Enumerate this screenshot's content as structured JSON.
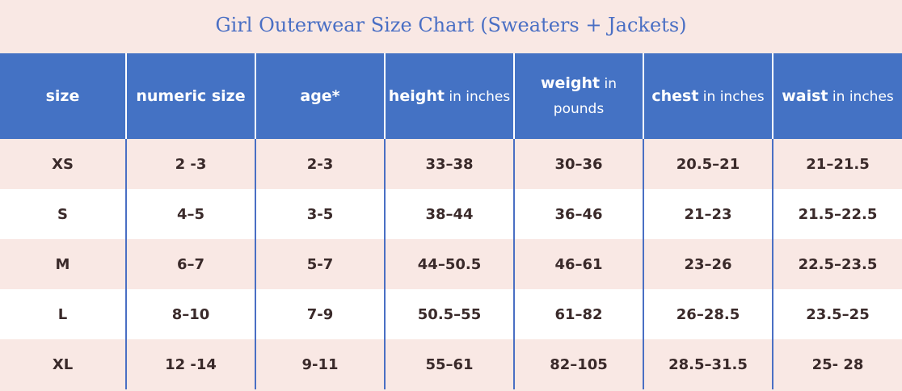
{
  "title": "Girl Outerwear Size Chart (Sweaters + Jackets)",
  "headers": [
    {
      "bold": "size",
      "regular": ""
    },
    {
      "bold": "numeric size",
      "regular": ""
    },
    {
      "bold": "age*",
      "regular": ""
    },
    {
      "bold": "height",
      "regular": " in inches"
    },
    {
      "bold": "weight",
      "regular": " in pounds"
    },
    {
      "bold": "chest",
      "regular": " in inches"
    },
    {
      "bold": "waist",
      "regular": " in inches"
    }
  ],
  "rows": [
    [
      "XS",
      "2 -3",
      "2-3",
      "33–38",
      "30–36",
      "20.5–21",
      "21–21.5"
    ],
    [
      "S",
      "4–5",
      "3-5",
      "38–44",
      "36–46",
      "21–23",
      "21.5–22.5"
    ],
    [
      "M",
      "6–7",
      "5-7",
      "44–50.5",
      "46–61",
      "23–26",
      "22.5–23.5"
    ],
    [
      "L",
      "8–10",
      "7-9",
      "50.5–55",
      "61–82",
      "26–28.5",
      "23.5–25"
    ],
    [
      "XL",
      "12 -14",
      "9-11",
      "55–61",
      "82–105",
      "28.5–31.5",
      "25- 28"
    ]
  ],
  "colors": {
    "header_bg": "#4472c4",
    "title": "#4a6fc4",
    "row_alt_pink": "#f9e8e4",
    "row_alt_white": "#ffffff"
  }
}
